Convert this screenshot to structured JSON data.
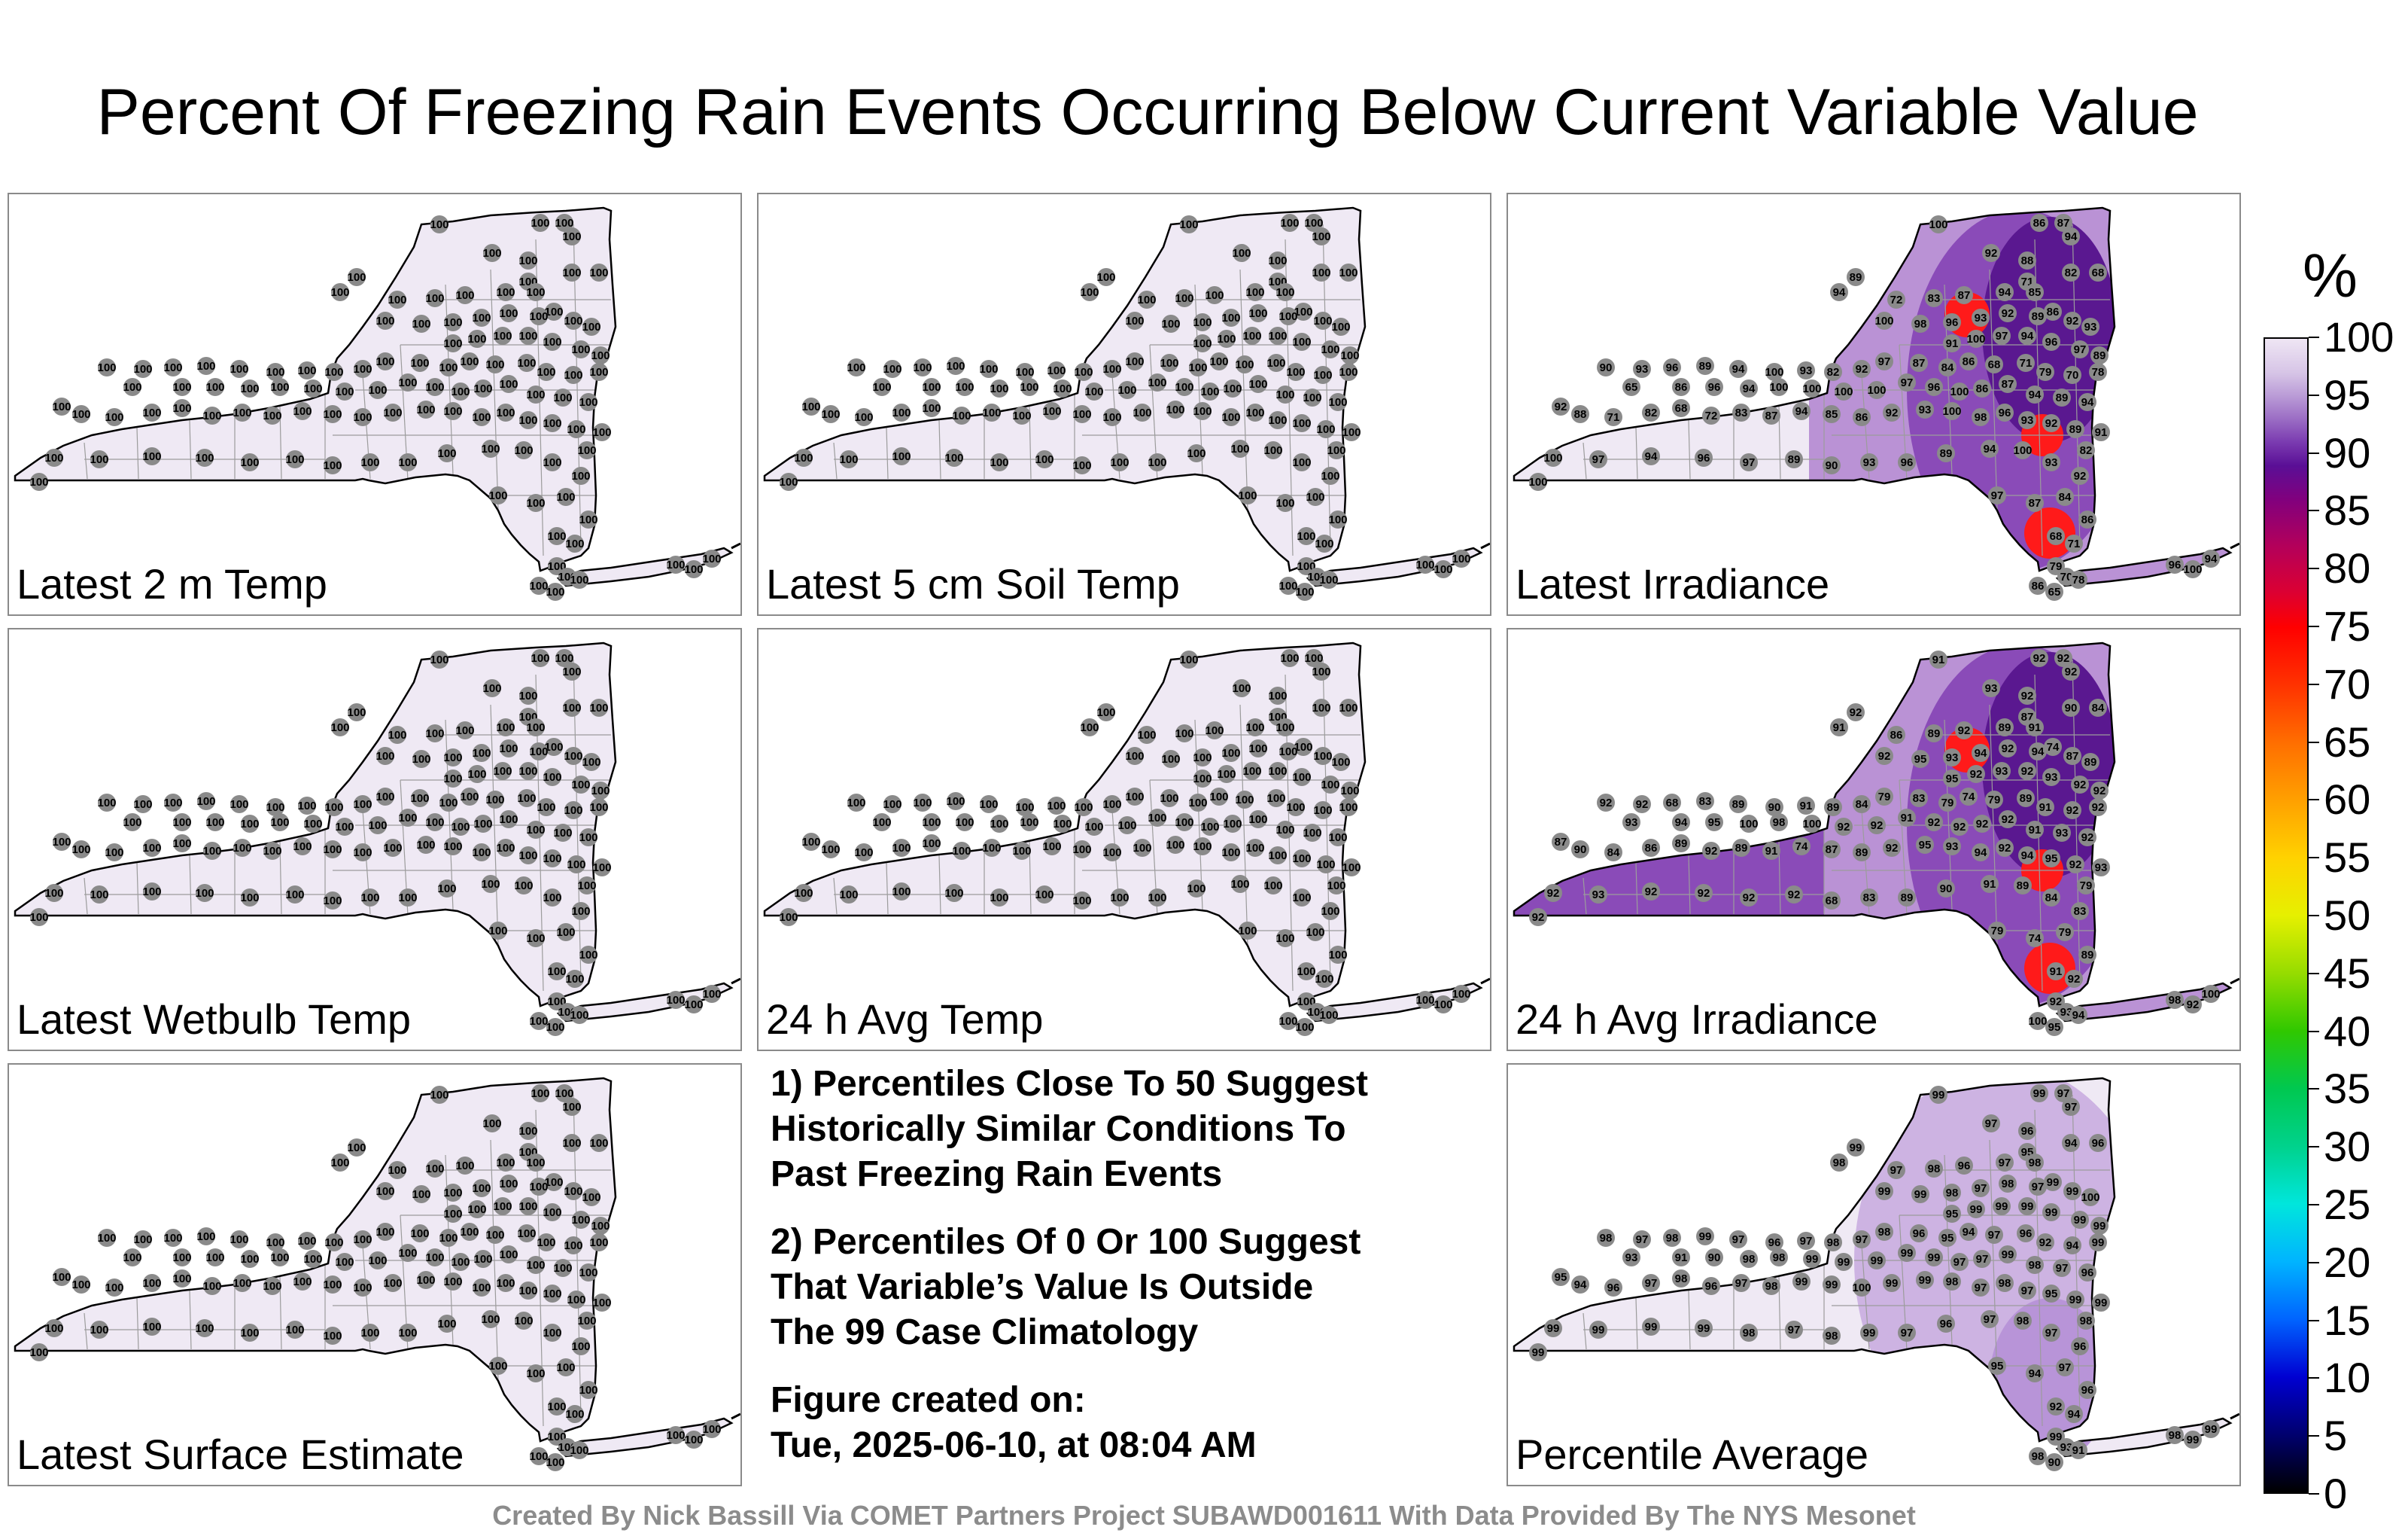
{
  "title": "Percent Of Freezing Rain Events Occurring Below Current Variable Value",
  "colors": {
    "low_fill": "#efe9f4",
    "station_marker": "#8a8a8a",
    "boundary": "#000000",
    "county_lines": "#9c9c9c",
    "purple_mid": "#8a4bb8",
    "purple_dark": "#5a1890",
    "red_hot": "#ff1a1a"
  },
  "panels": [
    {
      "label": "Latest 2 m Temp",
      "style": "flat",
      "values": []
    },
    {
      "label": "Latest 5 cm Soil Temp",
      "style": "flat",
      "values": []
    },
    {
      "label": "Latest Irradiance",
      "style": "irradiance",
      "values": [
        "100",
        "86",
        "87",
        "94",
        "89",
        "94",
        "92",
        "88",
        "71",
        "82",
        "68",
        "72",
        "83",
        "87",
        "94",
        "85",
        "86",
        "92",
        "93",
        "100",
        "98",
        "96",
        "93",
        "92",
        "89",
        "91",
        "100",
        "97",
        "94",
        "96",
        "97",
        "89",
        "90",
        "93",
        "96",
        "89",
        "94",
        "100",
        "93",
        "82",
        "92",
        "97",
        "87",
        "84",
        "86",
        "68",
        "71",
        "79",
        "70",
        "78",
        "65",
        "86",
        "96",
        "94",
        "100",
        "100",
        "100",
        "100",
        "97",
        "96"
      ]
    },
    {
      "label": "Latest Wetbulb Temp",
      "style": "flat",
      "values": []
    },
    {
      "label": "24 h Avg Temp",
      "style": "flat",
      "values": []
    },
    {
      "label": "24 h Avg Irradiance",
      "style": "irradiance",
      "values": [
        "91",
        "92",
        "92",
        "92",
        "92",
        "91",
        "93",
        "92",
        "87",
        "90",
        "84",
        "86",
        "89",
        "92",
        "89",
        "91",
        "74",
        "87",
        "89",
        "92",
        "95",
        "93",
        "94",
        "92",
        "94",
        "95",
        "92",
        "93",
        "92",
        "93",
        "92",
        "92",
        "92",
        "92",
        "68",
        "83",
        "89",
        "90",
        "91",
        "89",
        "84",
        "79",
        "83",
        "79",
        "74",
        "79",
        "89",
        "91",
        "92",
        "92",
        "93",
        "94",
        "95",
        "100",
        "98",
        "100",
        "92",
        "92"
      ]
    },
    {
      "label": "Latest Surface Estimate",
      "style": "flat",
      "values": []
    },
    {
      "label": "Percentile Average",
      "style": "average",
      "values": [
        "99",
        "99",
        "97",
        "97",
        "99",
        "98",
        "97",
        "96",
        "95",
        "94",
        "96",
        "97",
        "98",
        "96",
        "97",
        "98",
        "99",
        "99",
        "100",
        "99",
        "99",
        "98",
        "97",
        "98",
        "97",
        "95",
        "99",
        "99",
        "99",
        "99",
        "99",
        "99",
        "98",
        "97",
        "98",
        "99",
        "97",
        "96",
        "97",
        "98",
        "97",
        "98",
        "96",
        "95",
        "94",
        "97",
        "96",
        "92",
        "94",
        "99",
        "93",
        "91",
        "90",
        "98",
        "98",
        "99",
        "99",
        "99"
      ]
    }
  ],
  "flat_value": "100",
  "notes": [
    [
      "1) Percentiles Close To 50 Suggest",
      "Historically Similar Conditions To",
      "Past Freezing Rain Events"
    ],
    [
      "2) Percentiles Of 0 Or 100 Suggest",
      "That Variable’s Value Is Outside",
      "The 99 Case Climatology"
    ],
    [
      "Figure created on:",
      "Tue, 2025-06-10, at 08:04 AM"
    ]
  ],
  "colorbar": {
    "unit": "%",
    "min": 0,
    "max": 100,
    "ticks": [
      "0",
      "5",
      "10",
      "15",
      "20",
      "25",
      "30",
      "35",
      "40",
      "45",
      "50",
      "55",
      "60",
      "65",
      "70",
      "75",
      "80",
      "85",
      "90",
      "95",
      "100"
    ]
  },
  "credit": "Created By Nick Bassill Via COMET Partners Project SUBAWD001611 With Data Provided By The NYS Mesonet"
}
